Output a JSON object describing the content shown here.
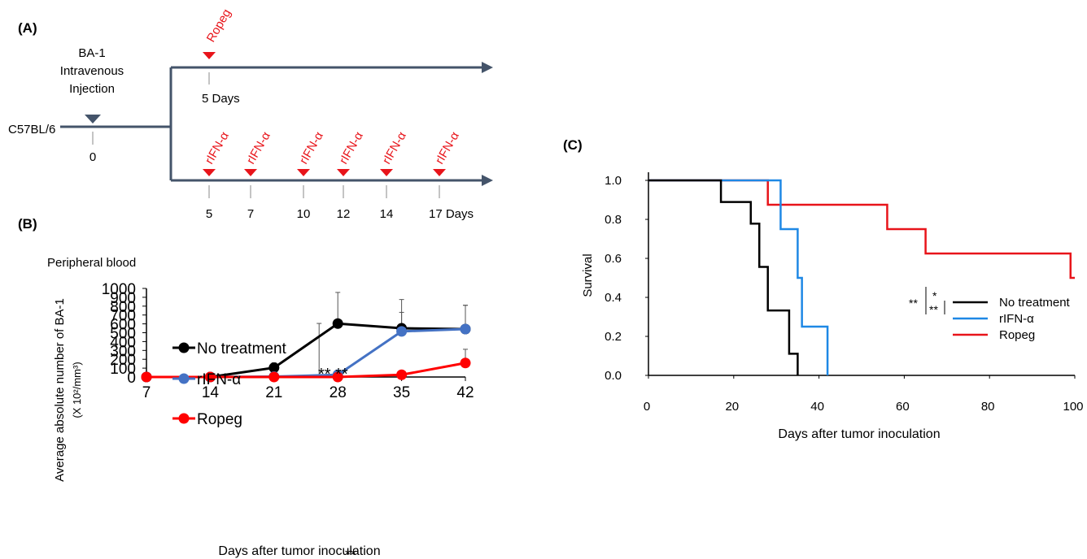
{
  "panel_a": {
    "label": "(A)",
    "strain": "C57BL/6",
    "injection": [
      "BA-1",
      "Intravenous",
      "Injection"
    ],
    "injection_day": "0",
    "ropeg_label": "Ropeg",
    "ropeg_day": "5 Days",
    "rifn_label": "rIFN-α",
    "rifn_days": [
      "5",
      "7",
      "10",
      "12",
      "14",
      "17 Days"
    ],
    "colors": {
      "arrow": "#44546a",
      "marker": "#e8141a"
    }
  },
  "panel_b": {
    "label": "(B)",
    "subtitle": "Peripheral blood",
    "ylabel_line1": "Average absolute number of BA-1",
    "ylabel_line2": "(X 10²/mm³)",
    "xlabel": "Days after tumor inoculation",
    "sig_top": "** **",
    "sig_low": "**"
  },
  "panel_c": {
    "label": "(C)",
    "ylabel": "Survival",
    "xlabel": "Days after tumor inoculation",
    "sig": {
      "outer": "**",
      "inner_top": "*",
      "inner_bottom": "**"
    }
  },
  "chart_data": [
    {
      "type": "line",
      "x": [
        7,
        14,
        21,
        28,
        35,
        42
      ],
      "xlabel": "Days after tumor inoculation",
      "ylabel": "Average absolute number of BA-1 (X 10²/mm³)",
      "ylim": [
        0,
        1000
      ],
      "yticks": [
        0,
        100,
        200,
        300,
        400,
        500,
        600,
        700,
        800,
        900,
        1000
      ],
      "legend_position": "upper-left",
      "series": [
        {
          "name": "No treatment",
          "color": "#000000",
          "values": [
            0,
            0,
            105,
            603,
            550,
            541
          ],
          "error_upper": [
            0,
            0,
            160,
            955,
            875,
            810
          ]
        },
        {
          "name": "rIFN-α",
          "color": "#4472c4",
          "values": [
            0,
            0,
            5,
            25,
            515,
            541
          ],
          "error_upper": [
            0,
            0,
            5,
            605,
            730,
            810
          ]
        },
        {
          "name": "Ropeg",
          "color": "#ff0000",
          "values": [
            0,
            0,
            0,
            0,
            25,
            158
          ],
          "error_upper": [
            0,
            0,
            0,
            0,
            45,
            313
          ]
        }
      ]
    },
    {
      "type": "line",
      "subtype": "step",
      "xlabel": "Days after tumor inoculation",
      "ylabel": "Survival",
      "xlim": [
        0,
        100
      ],
      "ylim": [
        0,
        1.0
      ],
      "xticks": [
        0,
        20,
        40,
        60,
        80,
        100
      ],
      "yticks": [
        "0.0",
        "0.2",
        "0.4",
        "0.6",
        "0.8",
        "1.0"
      ],
      "legend_position": "right",
      "series": [
        {
          "name": "No treatment",
          "color": "#000000",
          "x": [
            0,
            17,
            17,
            24,
            24,
            26,
            26,
            28,
            28,
            33,
            33,
            35,
            35
          ],
          "y": [
            1.0,
            1.0,
            0.889,
            0.889,
            0.778,
            0.778,
            0.556,
            0.556,
            0.333,
            0.333,
            0.111,
            0.111,
            0.0
          ]
        },
        {
          "name": "rIFN-α",
          "color": "#1e88e5",
          "x": [
            0,
            31,
            31,
            35,
            35,
            36,
            36,
            42,
            42
          ],
          "y": [
            1.0,
            1.0,
            0.75,
            0.75,
            0.5,
            0.5,
            0.25,
            0.25,
            0.0
          ]
        },
        {
          "name": "Ropeg",
          "color": "#e8141a",
          "x": [
            0,
            28,
            28,
            56,
            56,
            65,
            65,
            99,
            99,
            100
          ],
          "y": [
            1.0,
            1.0,
            0.875,
            0.875,
            0.75,
            0.75,
            0.625,
            0.625,
            0.5,
            0.5
          ]
        }
      ]
    }
  ]
}
